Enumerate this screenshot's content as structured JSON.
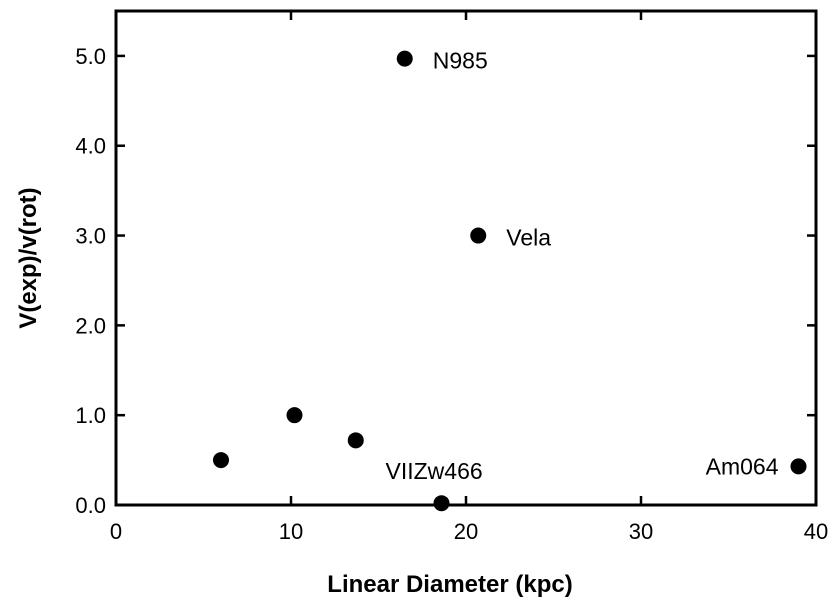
{
  "chart_data": {
    "type": "scatter",
    "title": "",
    "xlabel": "Linear  Diameter  (kpc)",
    "ylabel": "V(exp)/v(rot)",
    "xlim": [
      0,
      40
    ],
    "ylim": [
      0,
      5.5
    ],
    "x_ticks": [
      "0",
      "10",
      "20",
      "30",
      "40"
    ],
    "y_ticks": [
      "0.0",
      "1.0",
      "2.0",
      "3.0",
      "4.0",
      "5.0"
    ],
    "grid": false,
    "marker_color": "#000000",
    "points": [
      {
        "x": 6.0,
        "y": 0.5,
        "label": ""
      },
      {
        "x": 10.2,
        "y": 1.0,
        "label": ""
      },
      {
        "x": 13.7,
        "y": 0.72,
        "label": ""
      },
      {
        "x": 16.5,
        "y": 4.97,
        "label": "N985"
      },
      {
        "x": 18.6,
        "y": 0.02,
        "label": "VIIZw466"
      },
      {
        "x": 20.7,
        "y": 3.0,
        "label": "Vela"
      },
      {
        "x": 39.0,
        "y": 0.43,
        "label": "Am064"
      }
    ]
  }
}
